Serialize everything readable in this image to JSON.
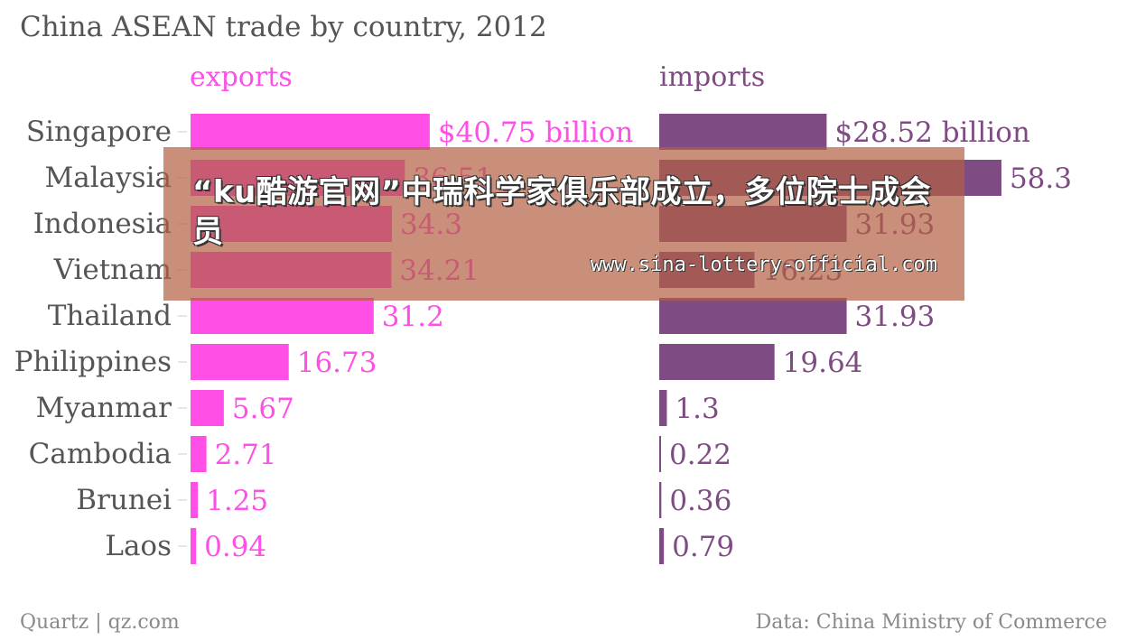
{
  "chart_data": {
    "type": "bar",
    "orientation": "horizontal",
    "title": "China ASEAN trade by country, 2012",
    "categories": [
      "Singapore",
      "Malaysia",
      "Indonesia",
      "Vietnam",
      "Thailand",
      "Philippines",
      "Myanmar",
      "Cambodia",
      "Brunei",
      "Laos"
    ],
    "series": [
      {
        "name": "exports",
        "color": "#ff4fe6",
        "values": [
          40.75,
          36.51,
          34.3,
          34.21,
          31.2,
          16.73,
          5.67,
          2.71,
          1.25,
          0.94
        ],
        "labels": [
          "$40.75 billion",
          "36.51",
          "34.3",
          "34.21",
          "31.2",
          "16.73",
          "5.67",
          "2.71",
          "1.25",
          "0.94"
        ]
      },
      {
        "name": "imports",
        "color": "#7f4b83",
        "values": [
          28.52,
          58.3,
          31.93,
          16.23,
          31.93,
          19.64,
          1.3,
          0.22,
          0.36,
          0.79
        ],
        "labels": [
          "$28.52 billion",
          "58.3",
          "31.93",
          "16.23",
          "31.93",
          "19.64",
          "1.3",
          "0.22",
          "0.36",
          "0.79"
        ]
      }
    ],
    "grid": false,
    "legend": "panel headers"
  },
  "footer": {
    "source_left": "Quartz | qz.com",
    "source_right": "Data: China Ministry of Commerce"
  },
  "overlay": {
    "headline": "“ku酷游官网”中瑞科学家俱乐部成立，多位院士成会员",
    "url": "www.sina-lottery-official.com"
  }
}
